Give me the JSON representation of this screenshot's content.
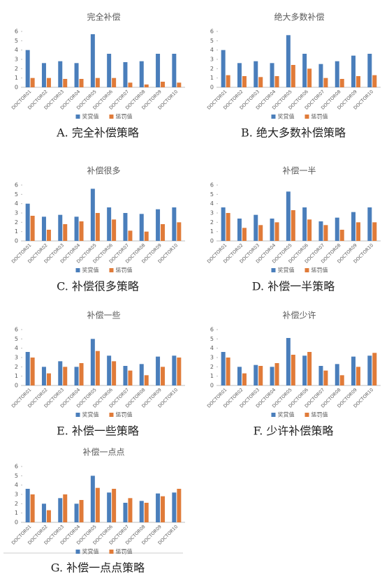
{
  "chart_data": [
    {
      "type": "bar",
      "title": "完全补偿",
      "caption": "A. 完全补偿策略",
      "categories": [
        "DOCTOR01",
        "DOCTOR02",
        "DOCTOR03",
        "DOCTOR04",
        "DOCTOR05",
        "DOCTOR06",
        "DOCTOR07",
        "DOCTOR08",
        "DOCTOR09",
        "DOCTOR10"
      ],
      "series": [
        {
          "name": "奖赏值",
          "color": "#4a7ebb",
          "values": [
            4.0,
            2.6,
            2.8,
            2.6,
            5.7,
            3.6,
            2.7,
            2.8,
            3.6,
            3.6
          ]
        },
        {
          "name": "惩罚值",
          "color": "#e07b39",
          "values": [
            1.0,
            1.0,
            0.9,
            0.9,
            1.0,
            1.0,
            0.5,
            0.3,
            0.6,
            0.5
          ]
        }
      ],
      "ylim": [
        0,
        6
      ],
      "yticks": [
        0,
        1,
        2,
        3,
        4,
        5,
        6
      ],
      "legend": "bottom"
    },
    {
      "type": "bar",
      "title": "绝大多数补偿",
      "caption": "B. 绝大多数补偿策略",
      "categories": [
        "DOCTOR01",
        "DOCTOR02",
        "DOCTOR03",
        "DOCTOR04",
        "DOCTOR05",
        "DOCTOR06",
        "DOCTOR07",
        "DOCTOR08",
        "DOCTOR09",
        "DOCTOR10"
      ],
      "series": [
        {
          "name": "奖赏值",
          "color": "#4a7ebb",
          "values": [
            4.0,
            2.6,
            2.8,
            2.6,
            5.6,
            3.6,
            2.5,
            2.8,
            3.4,
            3.6
          ]
        },
        {
          "name": "惩罚值",
          "color": "#e07b39",
          "values": [
            1.3,
            1.2,
            1.1,
            1.2,
            2.4,
            2.0,
            1.0,
            0.9,
            1.2,
            1.3
          ]
        }
      ],
      "ylim": [
        0,
        6
      ],
      "yticks": [
        0,
        1,
        2,
        3,
        4,
        5,
        6
      ],
      "legend": "bottom"
    },
    {
      "type": "bar",
      "title": "补偿很多",
      "caption": "C. 补偿很多策略",
      "categories": [
        "DOCTOR01",
        "DOCTOR02",
        "DOCTOR03",
        "DOCTOR04",
        "DOCTOR05",
        "DOCTOR06",
        "DOCTOR07",
        "DOCTOR08",
        "DOCTOR09",
        "DOCTOR10"
      ],
      "series": [
        {
          "name": "奖赏值",
          "color": "#4a7ebb",
          "values": [
            4.0,
            2.6,
            2.8,
            2.6,
            5.6,
            3.6,
            3.0,
            2.9,
            3.4,
            3.6
          ]
        },
        {
          "name": "惩罚值",
          "color": "#e07b39",
          "values": [
            2.7,
            1.2,
            1.8,
            2.1,
            3.0,
            2.3,
            1.1,
            1.0,
            1.8,
            2.0
          ]
        }
      ],
      "ylim": [
        0,
        6
      ],
      "yticks": [
        0,
        1,
        2,
        3,
        4,
        5,
        6
      ],
      "legend": "bottom"
    },
    {
      "type": "bar",
      "title": "补偿一半",
      "caption": "D. 补偿一半策略",
      "categories": [
        "DOCTOR01",
        "DOCTOR02",
        "DOCTOR03",
        "DOCTOR04",
        "DOCTOR05",
        "DOCTOR06",
        "DOCTOR07",
        "DOCTOR08",
        "DOCTOR09",
        "DOCTOR10"
      ],
      "series": [
        {
          "name": "奖赏值",
          "color": "#4a7ebb",
          "values": [
            3.6,
            2.4,
            2.8,
            2.4,
            5.3,
            3.6,
            2.1,
            2.5,
            3.1,
            3.6
          ]
        },
        {
          "name": "惩罚值",
          "color": "#e07b39",
          "values": [
            3.0,
            1.4,
            1.7,
            2.0,
            3.3,
            2.3,
            1.7,
            1.2,
            2.0,
            2.0
          ]
        }
      ],
      "ylim": [
        0,
        6
      ],
      "yticks": [
        0,
        1,
        2,
        3,
        4,
        5,
        6
      ],
      "legend": "bottom"
    },
    {
      "type": "bar",
      "title": "补偿一些",
      "caption": "E. 补偿一些策略",
      "categories": [
        "DOCTOR01",
        "DOCTOR02",
        "DOCTOR03",
        "DOCTOR04",
        "DOCTOR05",
        "DOCTOR06",
        "DOCTOR07",
        "DOCTOR08",
        "DOCTOR09",
        "DOCTOR10"
      ],
      "series": [
        {
          "name": "奖赏值",
          "color": "#4a7ebb",
          "values": [
            3.6,
            2.0,
            2.6,
            2.0,
            5.0,
            3.2,
            2.1,
            2.3,
            3.1,
            3.2
          ]
        },
        {
          "name": "惩罚值",
          "color": "#e07b39",
          "values": [
            3.0,
            1.3,
            2.0,
            2.4,
            3.7,
            2.6,
            1.6,
            1.1,
            2.0,
            3.0
          ]
        }
      ],
      "ylim": [
        0,
        6
      ],
      "yticks": [
        0,
        1,
        2,
        3,
        4,
        5,
        6
      ],
      "legend": "bottom"
    },
    {
      "type": "bar",
      "title": "补偿少许",
      "caption": "F. 少许补偿策略",
      "categories": [
        "DOCTOR01",
        "DOCTOR02",
        "DOCTOR03",
        "DOCTOR04",
        "DOCTOR05",
        "DOCTOR06",
        "DOCTOR07",
        "DOCTOR08",
        "DOCTOR09",
        "DOCTOR10"
      ],
      "series": [
        {
          "name": "奖赏值",
          "color": "#4a7ebb",
          "values": [
            3.6,
            2.0,
            2.2,
            2.0,
            5.1,
            3.2,
            2.1,
            2.3,
            3.1,
            3.2
          ]
        },
        {
          "name": "惩罚值",
          "color": "#e07b39",
          "values": [
            3.0,
            1.3,
            2.1,
            2.4,
            3.3,
            3.6,
            1.6,
            1.1,
            2.0,
            3.5
          ]
        }
      ],
      "ylim": [
        0,
        6
      ],
      "yticks": [
        0,
        1,
        2,
        3,
        4,
        5,
        6
      ],
      "legend": "bottom"
    },
    {
      "type": "bar",
      "title": "补偿一点点",
      "caption": "G. 补偿一点点策略",
      "categories": [
        "DOCTOR01",
        "DOCTOR02",
        "DOCTOR03",
        "DOCTOR04",
        "DOCTOR05",
        "DOCTOR06",
        "DOCTOR07",
        "DOCTOR08",
        "DOCTOR09",
        "DOCTOR10"
      ],
      "series": [
        {
          "name": "奖赏值",
          "color": "#4a7ebb",
          "values": [
            3.6,
            2.0,
            2.6,
            2.0,
            5.0,
            3.2,
            2.1,
            2.3,
            3.1,
            3.2
          ]
        },
        {
          "name": "惩罚值",
          "color": "#e07b39",
          "values": [
            3.0,
            1.3,
            3.0,
            2.4,
            3.7,
            3.6,
            2.6,
            2.1,
            2.8,
            3.6
          ]
        }
      ],
      "ylim": [
        0,
        6
      ],
      "yticks": [
        0,
        1,
        2,
        3,
        4,
        5,
        6
      ],
      "legend": "bottom"
    }
  ]
}
